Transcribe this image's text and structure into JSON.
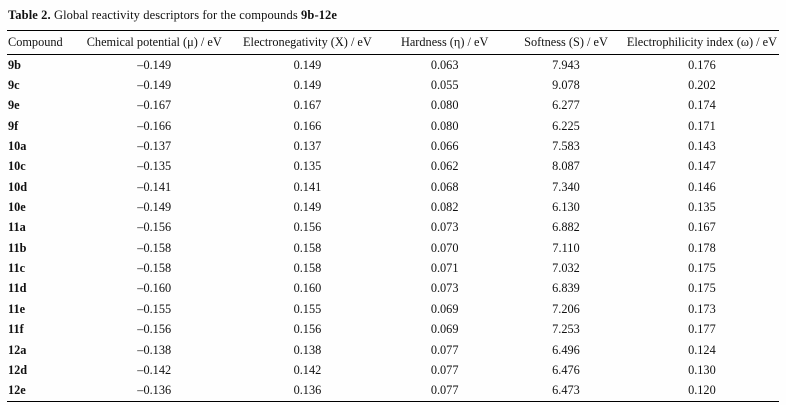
{
  "caption": {
    "prefix": "Table 2.",
    "body": " Global reactivity descriptors for the compounds ",
    "compound_range": "9b-12e"
  },
  "table": {
    "columns": [
      "Compound",
      "Chemical potential (μ) / eV",
      "Electronegativity (X) / eV",
      "Hardness (η) / eV",
      "Softness (S) / eV",
      "Electrophilicity index (ω) / eV"
    ],
    "rows": [
      {
        "compound": "9b",
        "values": [
          "–0.149",
          "0.149",
          "0.063",
          "7.943",
          "0.176"
        ]
      },
      {
        "compound": "9c",
        "values": [
          "–0.149",
          "0.149",
          "0.055",
          "9.078",
          "0.202"
        ]
      },
      {
        "compound": "9e",
        "values": [
          "–0.167",
          "0.167",
          "0.080",
          "6.277",
          "0.174"
        ]
      },
      {
        "compound": "9f",
        "values": [
          "–0.166",
          "0.166",
          "0.080",
          "6.225",
          "0.171"
        ]
      },
      {
        "compound": "10a",
        "values": [
          "–0.137",
          "0.137",
          "0.066",
          "7.583",
          "0.143"
        ]
      },
      {
        "compound": "10c",
        "values": [
          "–0.135",
          "0.135",
          "0.062",
          "8.087",
          "0.147"
        ]
      },
      {
        "compound": "10d",
        "values": [
          "–0.141",
          "0.141",
          "0.068",
          "7.340",
          "0.146"
        ]
      },
      {
        "compound": "10e",
        "values": [
          "–0.149",
          "0.149",
          "0.082",
          "6.130",
          "0.135"
        ]
      },
      {
        "compound": "11a",
        "values": [
          "–0.156",
          "0.156",
          "0.073",
          "6.882",
          "0.167"
        ]
      },
      {
        "compound": "11b",
        "values": [
          "–0.158",
          "0.158",
          "0.070",
          "7.110",
          "0.178"
        ]
      },
      {
        "compound": "11c",
        "values": [
          "–0.158",
          "0.158",
          "0.071",
          "7.032",
          "0.175"
        ]
      },
      {
        "compound": "11d",
        "values": [
          "–0.160",
          "0.160",
          "0.073",
          "6.839",
          "0.175"
        ]
      },
      {
        "compound": "11e",
        "values": [
          "–0.155",
          "0.155",
          "0.069",
          "7.206",
          "0.173"
        ]
      },
      {
        "compound": "11f",
        "values": [
          "–0.156",
          "0.156",
          "0.069",
          "7.253",
          "0.177"
        ]
      },
      {
        "compound": "12a",
        "values": [
          "–0.138",
          "0.138",
          "0.077",
          "6.496",
          "0.124"
        ]
      },
      {
        "compound": "12d",
        "values": [
          "–0.142",
          "0.142",
          "0.077",
          "6.476",
          "0.130"
        ]
      },
      {
        "compound": "12e",
        "values": [
          "–0.136",
          "0.136",
          "0.077",
          "6.473",
          "0.120"
        ]
      }
    ]
  }
}
